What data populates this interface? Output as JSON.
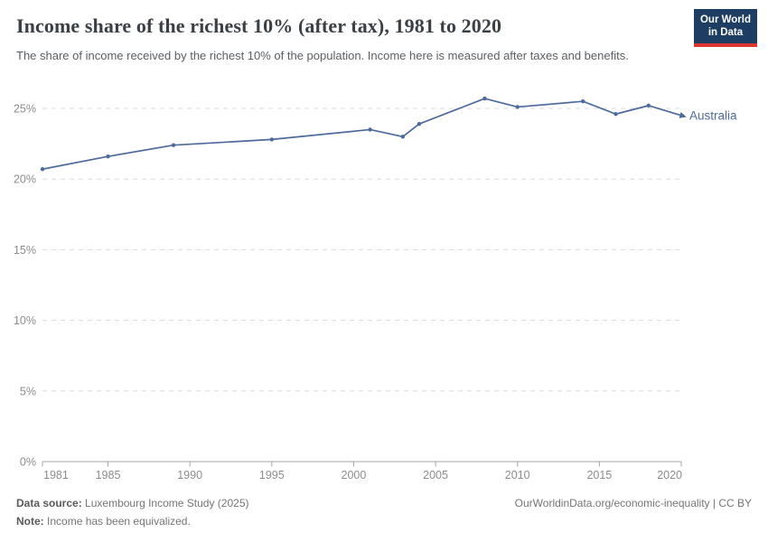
{
  "header": {
    "title": "Income share of the richest 10% (after tax), 1981 to 2020",
    "subtitle": "The share of income received by the richest 10% of the population. Income here is measured after taxes and benefits.",
    "logo": {
      "line1": "Our World",
      "line2": "in Data"
    }
  },
  "chart_data": {
    "type": "line",
    "title": "Income share of the richest 10% (after tax), 1981 to 2020",
    "xlabel": "",
    "ylabel": "",
    "xlim": [
      1981,
      2020
    ],
    "ylim": [
      0,
      25
    ],
    "grid": "horizontal-dashed",
    "x_ticks": [
      1981,
      1985,
      1990,
      1995,
      2000,
      2005,
      2010,
      2015,
      2020
    ],
    "y_ticks": [
      0,
      5,
      10,
      15,
      20,
      25
    ],
    "y_tick_suffix": "%",
    "legend_position": "end-of-line-label",
    "series": [
      {
        "name": "Australia",
        "color": "#4c6a9d",
        "x": [
          1981,
          1985,
          1989,
          1995,
          2001,
          2003,
          2004,
          2008,
          2010,
          2014,
          2016,
          2018,
          2020
        ],
        "values": [
          20.7,
          21.6,
          22.4,
          22.8,
          23.5,
          23.0,
          23.9,
          25.7,
          25.1,
          25.5,
          24.6,
          25.2,
          24.5
        ]
      }
    ]
  },
  "footer": {
    "source_label": "Data source:",
    "source_value": "Luxembourg Income Study (2025)",
    "note_label": "Note:",
    "note_value": "Income has been equivalized.",
    "link": "OurWorldinData.org/economic-inequality | CC BY"
  },
  "colors": {
    "series_line": "#4c6a9d",
    "gridline": "#dbdbdb",
    "axis": "#a5a5a5",
    "tick_label": "#8c8c8c",
    "title_text": "#3b4045",
    "subtitle_text": "#5a5f63",
    "footer_text": "#757575",
    "logo_background": "#1d3d63",
    "logo_underline": "#dc352f"
  }
}
